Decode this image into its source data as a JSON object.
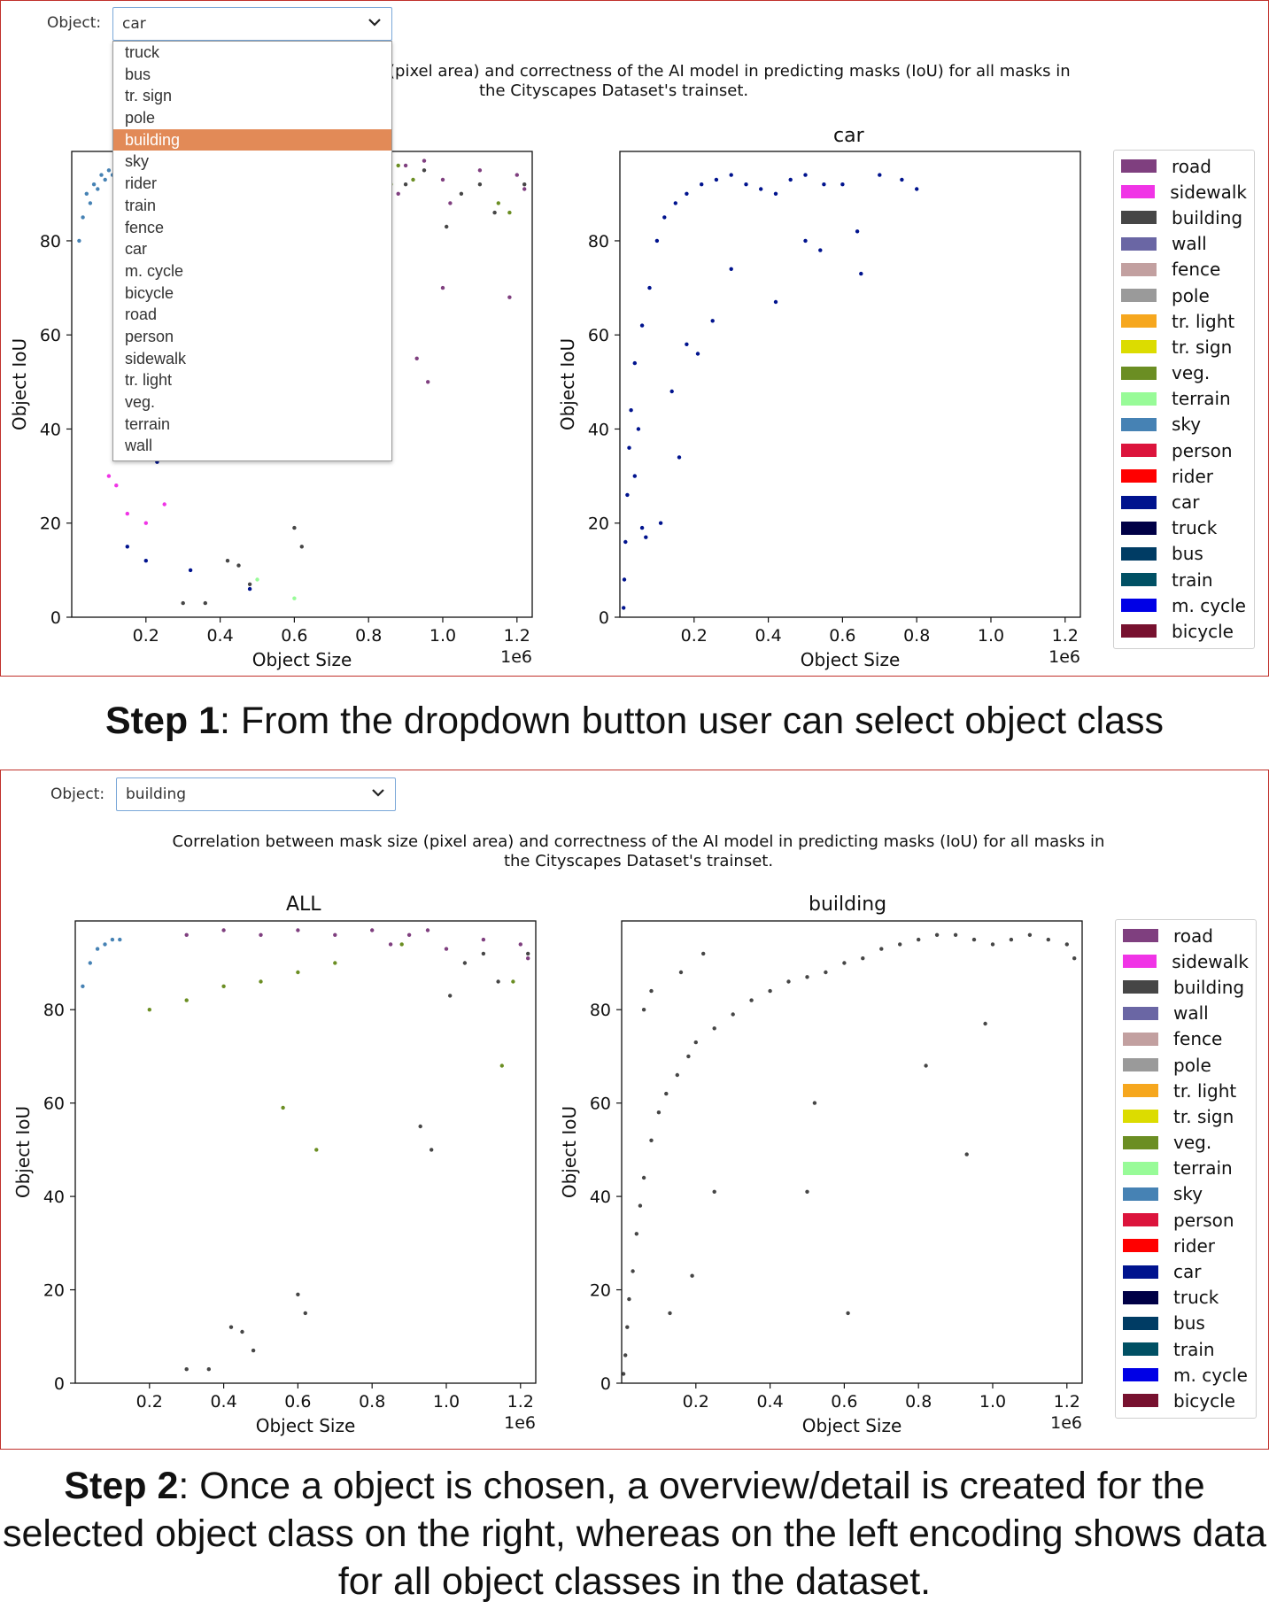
{
  "legend": [
    {
      "label": "road",
      "color": "#7f3f7f"
    },
    {
      "label": "sidewalk",
      "color": "#f034e6"
    },
    {
      "label": "building",
      "color": "#464646"
    },
    {
      "label": "wall",
      "color": "#6a66a4"
    },
    {
      "label": "fence",
      "color": "#c2a0a0"
    },
    {
      "label": "pole",
      "color": "#9a9a9a"
    },
    {
      "label": "tr. light",
      "color": "#f6a71e"
    },
    {
      "label": "tr. sign",
      "color": "#dcdc00"
    },
    {
      "label": "veg.",
      "color": "#6b8e23"
    },
    {
      "label": "terrain",
      "color": "#98fb98"
    },
    {
      "label": "sky",
      "color": "#4682b4"
    },
    {
      "label": "person",
      "color": "#dc143c"
    },
    {
      "label": "rider",
      "color": "#ff0000"
    },
    {
      "label": "car",
      "color": "#00138e"
    },
    {
      "label": "truck",
      "color": "#000046"
    },
    {
      "label": "bus",
      "color": "#003c64"
    },
    {
      "label": "train",
      "color": "#005064"
    },
    {
      "label": "m. cycle",
      "color": "#0000e6"
    },
    {
      "label": "bicycle",
      "color": "#77112f"
    }
  ],
  "step1": {
    "object_label": "Object:",
    "selected": "car",
    "dropdown_options": [
      "truck",
      "bus",
      "tr. sign",
      "pole",
      "building",
      "sky",
      "rider",
      "train",
      "fence",
      "car",
      "m. cycle",
      "bicycle",
      "road",
      "person",
      "sidewalk",
      "tr. light",
      "veg.",
      "terrain",
      "wall"
    ],
    "highlighted_option": "building",
    "description_line1": "(pixel area) and correctness of the AI model in predicting masks (IoU) for all masks in",
    "description_line2": "the Cityscapes Dataset's trainset.",
    "detail_title": "car",
    "caption_bold": "Step 1",
    "caption_text": ": From the dropdown button user can select object class"
  },
  "step2": {
    "object_label": "Object:",
    "selected": "building",
    "description_line1": "Correlation between mask size (pixel area) and correctness of the AI model in predicting masks (IoU) for all masks in",
    "description_line2": "the Cityscapes Dataset's trainset.",
    "overview_title": "ALL",
    "detail_title": "building",
    "caption_bold": "Step 2",
    "caption_text": ": Once a object is chosen, a overview/detail is created for the selected object class on the right, whereas on the left encoding shows data for all object classes in the dataset."
  },
  "axes": {
    "xlabel": "Object Size",
    "ylabel": "Object IoU",
    "x_multiplier": "1e6",
    "x_ticks": [
      "0.2",
      "0.4",
      "0.6",
      "0.8",
      "1.0",
      "1.2"
    ],
    "y_ticks": [
      "0",
      "20",
      "40",
      "60",
      "80"
    ]
  },
  "chart_data": [
    {
      "type": "scatter",
      "panel": "step1-left",
      "xlabel": "Object Size",
      "ylabel": "Object IoU",
      "xlim": [
        0,
        1220000
      ],
      "ylim": [
        0,
        99
      ],
      "series": [
        {
          "name": "road",
          "points": [
            [
              600000,
              96
            ],
            [
              700000,
              97
            ],
            [
              800000,
              95
            ],
            [
              900000,
              96
            ],
            [
              950000,
              97
            ],
            [
              850000,
              94
            ],
            [
              1000000,
              93
            ],
            [
              1100000,
              95
            ],
            [
              1200000,
              94
            ],
            [
              1220000,
              91
            ],
            [
              880000,
              90
            ],
            [
              1000000,
              70
            ],
            [
              1180000,
              68
            ],
            [
              930000,
              55
            ],
            [
              960000,
              50
            ],
            [
              1020000,
              88
            ]
          ]
        },
        {
          "name": "sky",
          "points": [
            [
              20000,
              80
            ],
            [
              40000,
              90
            ],
            [
              60000,
              92
            ],
            [
              80000,
              94
            ],
            [
              100000,
              95
            ],
            [
              30000,
              85
            ],
            [
              50000,
              88
            ],
            [
              70000,
              91
            ],
            [
              90000,
              93
            ],
            [
              110000,
              94
            ]
          ]
        },
        {
          "name": "veg.",
          "points": [
            [
              1180000,
              86
            ],
            [
              880000,
              96
            ],
            [
              920000,
              93
            ],
            [
              860000,
              92
            ],
            [
              1150000,
              88
            ]
          ]
        },
        {
          "name": "building",
          "points": [
            [
              900000,
              92
            ],
            [
              950000,
              95
            ],
            [
              1050000,
              90
            ],
            [
              1100000,
              92
            ],
            [
              1220000,
              92
            ],
            [
              1140000,
              86
            ],
            [
              1010000,
              83
            ],
            [
              600000,
              19
            ],
            [
              620000,
              15
            ],
            [
              420000,
              12
            ],
            [
              450000,
              11
            ],
            [
              480000,
              7
            ],
            [
              360000,
              3
            ],
            [
              300000,
              3
            ]
          ]
        },
        {
          "name": "car",
          "points": [
            [
              150000,
              15
            ],
            [
              200000,
              12
            ],
            [
              230000,
              33
            ],
            [
              320000,
              10
            ],
            [
              480000,
              6
            ]
          ]
        },
        {
          "name": "sidewalk",
          "points": [
            [
              200000,
              20
            ],
            [
              150000,
              22
            ],
            [
              120000,
              28
            ],
            [
              250000,
              24
            ],
            [
              100000,
              30
            ]
          ]
        },
        {
          "name": "terrain",
          "points": [
            [
              500000,
              8
            ],
            [
              600000,
              4
            ]
          ]
        }
      ]
    },
    {
      "type": "scatter",
      "panel": "step1-right",
      "title": "car",
      "xlabel": "Object Size",
      "ylabel": "Object IoU",
      "xlim": [
        0,
        1220000
      ],
      "ylim": [
        0,
        99
      ],
      "series": [
        {
          "name": "car",
          "points": [
            [
              10000,
              2
            ],
            [
              12000,
              8
            ],
            [
              15000,
              16
            ],
            [
              20000,
              26
            ],
            [
              25000,
              36
            ],
            [
              30000,
              44
            ],
            [
              40000,
              54
            ],
            [
              60000,
              62
            ],
            [
              80000,
              70
            ],
            [
              100000,
              80
            ],
            [
              120000,
              85
            ],
            [
              150000,
              88
            ],
            [
              180000,
              90
            ],
            [
              220000,
              92
            ],
            [
              260000,
              93
            ],
            [
              300000,
              94
            ],
            [
              340000,
              92
            ],
            [
              380000,
              91
            ],
            [
              420000,
              90
            ],
            [
              460000,
              93
            ],
            [
              500000,
              94
            ],
            [
              550000,
              92
            ],
            [
              600000,
              92
            ],
            [
              650000,
              73
            ],
            [
              700000,
              94
            ],
            [
              760000,
              93
            ],
            [
              800000,
              91
            ],
            [
              640000,
              82
            ],
            [
              540000,
              78
            ],
            [
              500000,
              80
            ],
            [
              420000,
              67
            ],
            [
              300000,
              74
            ],
            [
              250000,
              63
            ],
            [
              210000,
              56
            ],
            [
              180000,
              58
            ],
            [
              140000,
              48
            ],
            [
              110000,
              20
            ],
            [
              160000,
              34
            ],
            [
              70000,
              17
            ],
            [
              60000,
              19
            ],
            [
              40000,
              30
            ],
            [
              50000,
              40
            ]
          ]
        }
      ]
    },
    {
      "type": "scatter",
      "panel": "step2-left",
      "title": "ALL",
      "xlabel": "Object Size",
      "ylabel": "Object IoU",
      "xlim": [
        0,
        1220000
      ],
      "ylim": [
        0,
        99
      ],
      "series": [
        {
          "name": "road",
          "points": [
            [
              300000,
              96
            ],
            [
              400000,
              97
            ],
            [
              500000,
              96
            ],
            [
              600000,
              97
            ],
            [
              700000,
              96
            ],
            [
              800000,
              97
            ],
            [
              900000,
              96
            ],
            [
              950000,
              97
            ],
            [
              850000,
              94
            ],
            [
              1000000,
              93
            ],
            [
              1100000,
              95
            ],
            [
              1200000,
              94
            ],
            [
              1220000,
              91
            ]
          ]
        },
        {
          "name": "sky",
          "points": [
            [
              20000,
              85
            ],
            [
              40000,
              90
            ],
            [
              60000,
              93
            ],
            [
              80000,
              94
            ],
            [
              100000,
              95
            ],
            [
              120000,
              95
            ]
          ]
        },
        {
          "name": "veg.",
          "points": [
            [
              200000,
              80
            ],
            [
              300000,
              82
            ],
            [
              400000,
              85
            ],
            [
              500000,
              86
            ],
            [
              600000,
              88
            ],
            [
              700000,
              90
            ],
            [
              880000,
              94
            ],
            [
              1180000,
              86
            ],
            [
              1150000,
              68
            ],
            [
              560000,
              59
            ],
            [
              650000,
              50
            ]
          ]
        },
        {
          "name": "building",
          "points": [
            [
              1050000,
              90
            ],
            [
              1100000,
              92
            ],
            [
              1220000,
              92
            ],
            [
              1140000,
              86
            ],
            [
              1010000,
              83
            ],
            [
              930000,
              55
            ],
            [
              960000,
              50
            ],
            [
              600000,
              19
            ],
            [
              620000,
              15
            ],
            [
              420000,
              12
            ],
            [
              450000,
              11
            ],
            [
              480000,
              7
            ],
            [
              360000,
              3
            ],
            [
              300000,
              3
            ]
          ]
        }
      ]
    },
    {
      "type": "scatter",
      "panel": "step2-right",
      "title": "building",
      "xlabel": "Object Size",
      "ylabel": "Object IoU",
      "xlim": [
        0,
        1220000
      ],
      "ylim": [
        0,
        99
      ],
      "series": [
        {
          "name": "building",
          "points": [
            [
              5000,
              2
            ],
            [
              10000,
              6
            ],
            [
              15000,
              12
            ],
            [
              20000,
              18
            ],
            [
              30000,
              24
            ],
            [
              40000,
              32
            ],
            [
              50000,
              38
            ],
            [
              60000,
              44
            ],
            [
              80000,
              52
            ],
            [
              100000,
              58
            ],
            [
              120000,
              62
            ],
            [
              150000,
              66
            ],
            [
              180000,
              70
            ],
            [
              200000,
              73
            ],
            [
              250000,
              76
            ],
            [
              300000,
              79
            ],
            [
              350000,
              82
            ],
            [
              400000,
              84
            ],
            [
              450000,
              86
            ],
            [
              500000,
              87
            ],
            [
              550000,
              88
            ],
            [
              600000,
              90
            ],
            [
              650000,
              91
            ],
            [
              700000,
              93
            ],
            [
              750000,
              94
            ],
            [
              800000,
              95
            ],
            [
              850000,
              96
            ],
            [
              900000,
              96
            ],
            [
              950000,
              95
            ],
            [
              1000000,
              94
            ],
            [
              1050000,
              95
            ],
            [
              1100000,
              96
            ],
            [
              1150000,
              95
            ],
            [
              1200000,
              94
            ],
            [
              1220000,
              91
            ],
            [
              610000,
              15
            ],
            [
              500000,
              41
            ],
            [
              930000,
              49
            ],
            [
              980000,
              77
            ],
            [
              820000,
              68
            ],
            [
              520000,
              60
            ],
            [
              250000,
              41
            ],
            [
              190000,
              23
            ],
            [
              130000,
              15
            ],
            [
              60000,
              80
            ],
            [
              80000,
              84
            ],
            [
              160000,
              88
            ],
            [
              220000,
              92
            ]
          ]
        }
      ]
    }
  ]
}
